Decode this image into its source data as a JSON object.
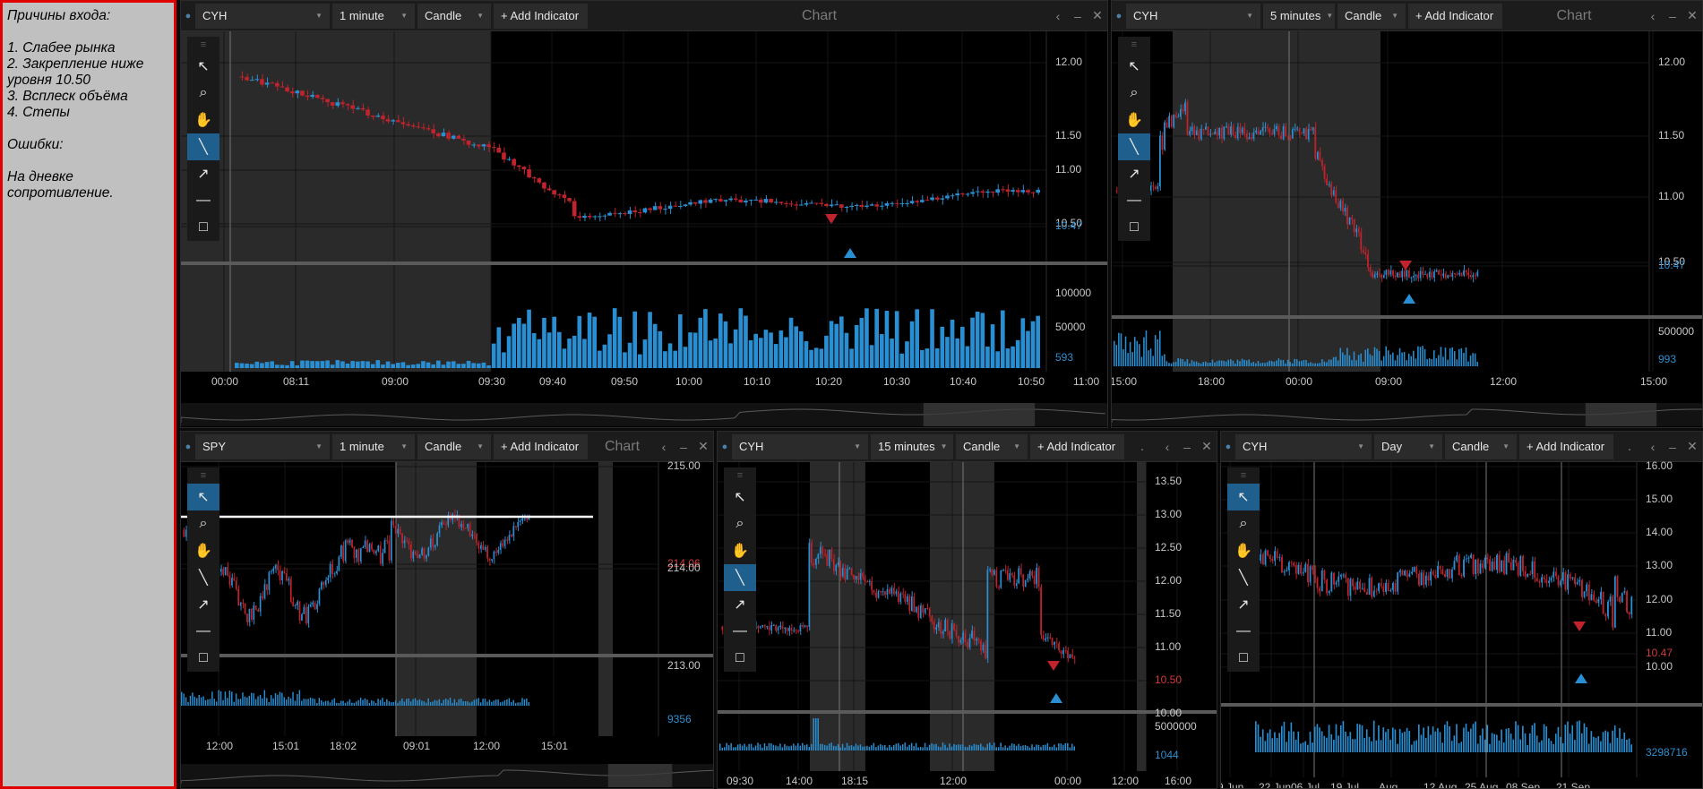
{
  "notes": {
    "lines": [
      "Причины входа:",
      "",
      "1. Слабее рынка",
      "2. Закрепление ниже",
      "уровня 10.50",
      "3. Всплеск объёма",
      "4. Степы",
      "",
      "Ошибки:",
      "",
      "На дневке",
      "сопротивление."
    ]
  },
  "colors": {
    "up": "#2a8fd2",
    "down": "#c0232c",
    "active_tool": "#1e5f8e",
    "border": "#e00000"
  },
  "tool_icons": [
    "pointer-icon",
    "zoom-icon",
    "hand-icon",
    "line-tool-icon",
    "arrow-tool-icon",
    "horizontal-line-icon",
    "rectangle-icon"
  ],
  "panels": [
    {
      "symbol": "CYH",
      "interval": "1 minute",
      "type": "Candle",
      "add_indicator": "+ Add Indicator",
      "title": "Chart",
      "y_ticks": [
        "12.00",
        "11.50",
        "11.00",
        "10.50",
        "10.47"
      ],
      "vol_ticks": [
        "100000",
        "50000",
        "593"
      ],
      "x_ticks": [
        "00:00",
        "08:11",
        "09:00",
        "09:30",
        "09:40",
        "09:50",
        "10:00",
        "10:10",
        "10:20",
        "10:30",
        "10:40",
        "10:50",
        "11:00"
      ]
    },
    {
      "symbol": "CYH",
      "interval": "5 minutes",
      "type": "Candle",
      "add_indicator": "+ Add Indicator",
      "title": "Chart",
      "y_ticks": [
        "12.00",
        "11.50",
        "11.00",
        "10.50",
        "10.47"
      ],
      "vol_ticks": [
        "500000",
        "993"
      ],
      "x_ticks": [
        "15:00",
        "18:00",
        "00:00",
        "09:00",
        "12:00",
        "15:00"
      ]
    },
    {
      "symbol": "SPY",
      "interval": "1 minute",
      "type": "Candle",
      "add_indicator": "+ Add Indicator",
      "title": "Chart",
      "y_ticks": [
        "215.00",
        "214.06",
        "214.00",
        "213.00"
      ],
      "vol_ticks": [
        "9356"
      ],
      "x_ticks": [
        "12:00",
        "15:01",
        "18:02",
        "09:01",
        "12:00",
        "15:01"
      ]
    },
    {
      "symbol": "CYH",
      "interval": "15 minutes",
      "type": "Candle",
      "add_indicator": "+ Add Indicator",
      "title": ".",
      "y_ticks": [
        "13.50",
        "13.00",
        "12.50",
        "12.00",
        "11.50",
        "11.00",
        "10.50",
        "10.00"
      ],
      "vol_ticks": [
        "5000000",
        "1044"
      ],
      "x_ticks": [
        "09:30",
        "14:00",
        "18:15",
        "12:00",
        "00:00",
        "12:00",
        "16:00"
      ]
    },
    {
      "symbol": "CYH",
      "interval": "Day",
      "type": "Candle",
      "add_indicator": "+ Add Indicator",
      "title": ".",
      "y_ticks": [
        "16.00",
        "15.00",
        "14.00",
        "13.00",
        "12.00",
        "11.00",
        "10.47",
        "10.00"
      ],
      "vol_ticks": [
        "3298716"
      ],
      "x_ticks": [
        "9 Jun",
        "22 Jun",
        "06 Jul",
        "19 Jul",
        "Aug",
        "12 Aug",
        "25 Aug",
        "08 Sep",
        "21 Sep"
      ]
    }
  ]
}
